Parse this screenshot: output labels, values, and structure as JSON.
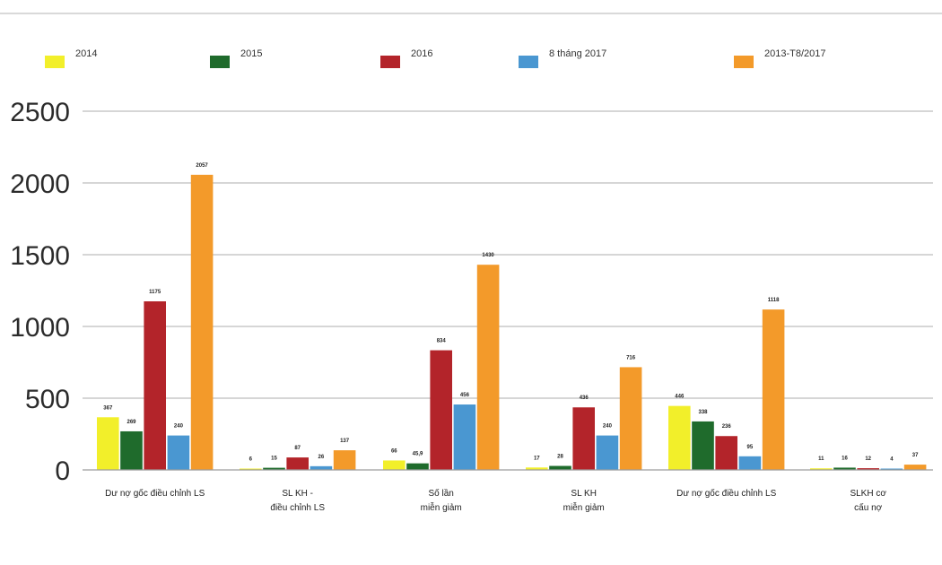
{
  "chart_data": {
    "type": "bar",
    "title": "",
    "xlabel": "",
    "ylabel": "",
    "ylim": [
      0,
      2500
    ],
    "yticks": [
      0,
      500,
      1000,
      1500,
      2000,
      2500
    ],
    "grid": true,
    "legend_position": "top",
    "categories": [
      "Dư nợ gốc điều chỉnh LS",
      "SL KH -\nđiều chỉnh LS",
      "Số lần\nmiễn giảm",
      "SL KH\nmiễn giảm",
      "Dư nợ gốc điều chỉnh LS",
      "SLKH cơ\ncấu nợ"
    ],
    "series": [
      {
        "name": "2014",
        "color": "#f2ef2a",
        "values": [
          367,
          6,
          66,
          17,
          446,
          11
        ],
        "labels": [
          "367",
          "6",
          "66",
          "17",
          "446",
          "11"
        ]
      },
      {
        "name": "2015",
        "color": "#1f6b2c",
        "values": [
          269,
          15,
          45.9,
          28,
          338,
          16
        ],
        "labels": [
          "269",
          "15",
          "45,9",
          "28",
          "338",
          "16"
        ]
      },
      {
        "name": "2016",
        "color": "#b3242a",
        "values": [
          1175,
          87,
          834,
          436,
          236,
          12
        ],
        "labels": [
          "1175",
          "87",
          "834",
          "436",
          "236",
          "12"
        ]
      },
      {
        "name": "8 tháng 2017",
        "color": "#4a97d1",
        "values": [
          240,
          26,
          456,
          240,
          95,
          4
        ],
        "labels": [
          "240",
          "26",
          "456",
          "240",
          "95",
          "4"
        ]
      },
      {
        "name": "2013-T8/2017",
        "color": "#f39a2a",
        "values": [
          2057,
          137,
          1430,
          716,
          1118,
          37
        ],
        "labels": [
          "2057",
          "137",
          "1430",
          "716",
          "1118",
          "37"
        ]
      }
    ]
  }
}
